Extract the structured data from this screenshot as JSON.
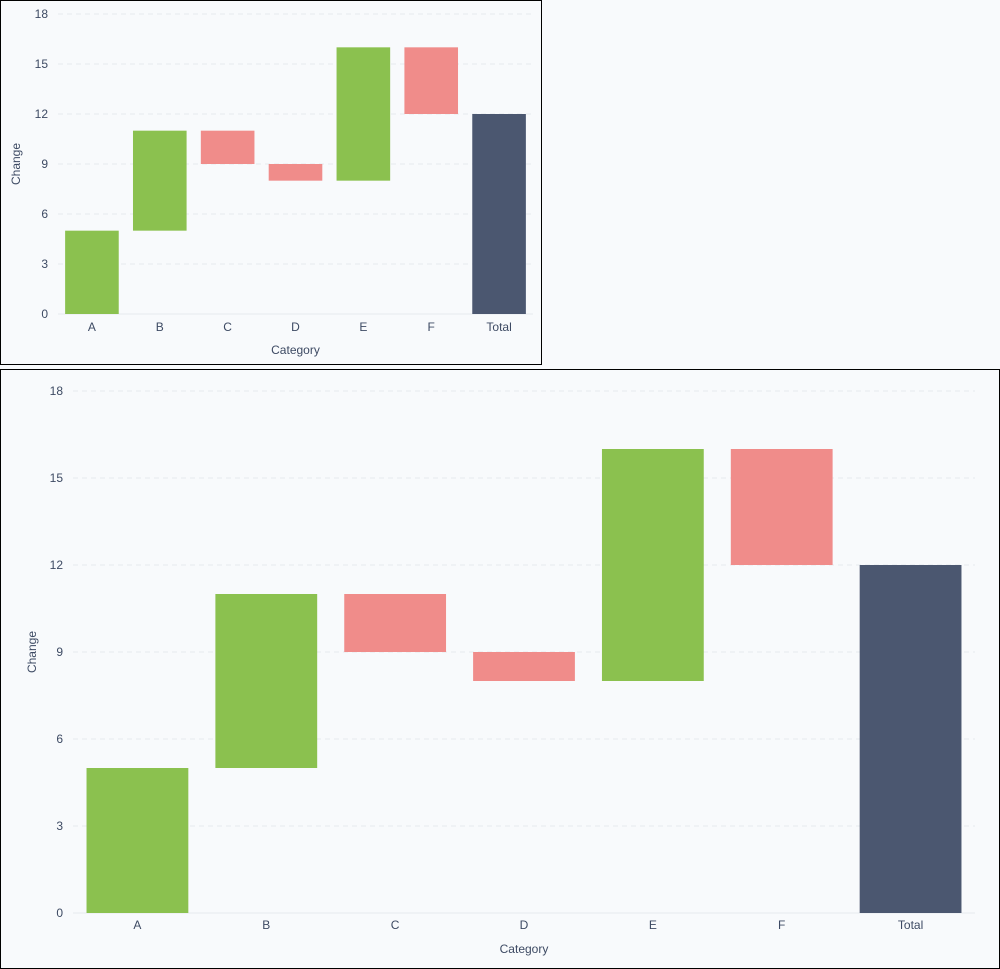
{
  "chart_data": [
    {
      "type": "bar",
      "subtype": "waterfall",
      "categories": [
        "A",
        "B",
        "C",
        "D",
        "E",
        "F",
        "Total"
      ],
      "changes": [
        5,
        6,
        -2,
        -1,
        8,
        -4,
        12
      ],
      "bar_start": [
        0,
        5,
        9,
        8,
        8,
        12,
        0
      ],
      "bar_end": [
        5,
        11,
        11,
        9,
        16,
        16,
        12
      ],
      "xlabel": "Category",
      "ylabel": "Change",
      "ylim": [
        0,
        18
      ],
      "yticks": [
        0,
        3,
        6,
        9,
        12,
        15,
        18
      ],
      "grid": "horizontal-dashed",
      "legend": "none"
    },
    {
      "type": "bar",
      "subtype": "waterfall",
      "categories": [
        "A",
        "B",
        "C",
        "D",
        "E",
        "F",
        "Total"
      ],
      "changes": [
        5,
        6,
        -2,
        -1,
        8,
        -4,
        12
      ],
      "bar_start": [
        0,
        5,
        9,
        8,
        8,
        12,
        0
      ],
      "bar_end": [
        5,
        11,
        11,
        9,
        16,
        16,
        12
      ],
      "xlabel": "Category",
      "ylabel": "Change",
      "ylim": [
        0,
        18
      ],
      "yticks": [
        0,
        3,
        6,
        9,
        12,
        15,
        18
      ],
      "grid": "horizontal-dashed",
      "legend": "none"
    }
  ],
  "colors": {
    "increase": "#8bc14f",
    "decrease": "#f08c8a",
    "total": "#4b5770",
    "grid": "#e6e9ee",
    "text": "#3d4a63"
  }
}
